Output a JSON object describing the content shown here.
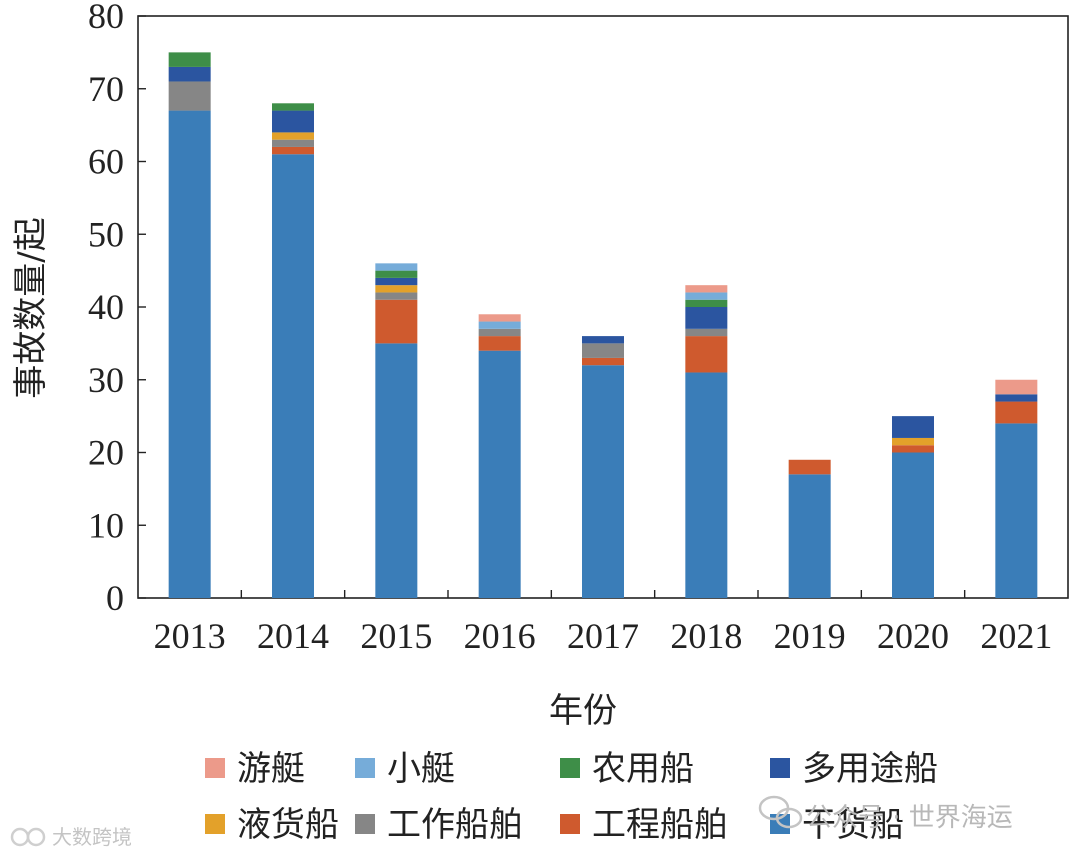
{
  "chart_data": {
    "type": "bar",
    "stacked": true,
    "categories": [
      "2013",
      "2014",
      "2015",
      "2016",
      "2017",
      "2018",
      "2019",
      "2020",
      "2021"
    ],
    "series": [
      {
        "name": "干货船",
        "color": "#3a7db8",
        "values": [
          67,
          61,
          35,
          34,
          32,
          31,
          17,
          20,
          24
        ]
      },
      {
        "name": "工程船舶",
        "color": "#cf5a2e",
        "values": [
          0,
          1,
          6,
          2,
          1,
          5,
          2,
          1,
          3
        ]
      },
      {
        "name": "工作船舶",
        "color": "#868686",
        "values": [
          4,
          1,
          1,
          1,
          2,
          1,
          0,
          0,
          0
        ]
      },
      {
        "name": "液货船",
        "color": "#e3a12a",
        "values": [
          0,
          1,
          1,
          0,
          0,
          0,
          0,
          1,
          0
        ]
      },
      {
        "name": "多用途船",
        "color": "#2b55a0",
        "values": [
          2,
          3,
          1,
          0,
          1,
          3,
          0,
          3,
          1
        ]
      },
      {
        "name": "农用船",
        "color": "#3e8e48",
        "values": [
          2,
          1,
          1,
          0,
          0,
          1,
          0,
          0,
          0
        ]
      },
      {
        "name": "小艇",
        "color": "#76acd9",
        "values": [
          0,
          0,
          1,
          1,
          0,
          1,
          0,
          0,
          0
        ]
      },
      {
        "name": "游艇",
        "color": "#ec9a8a",
        "values": [
          0,
          0,
          0,
          1,
          0,
          1,
          0,
          0,
          2
        ]
      }
    ],
    "legend_order": [
      "游艇",
      "小艇",
      "农用船",
      "多用途船",
      "液货船",
      "工作船舶",
      "工程船舶",
      "干货船"
    ],
    "xlabel": "年份",
    "ylabel": "事故数量/起",
    "ylim": [
      0,
      80
    ],
    "yticks": [
      0,
      10,
      20,
      30,
      40,
      50,
      60,
      70,
      80
    ],
    "grid": false,
    "legend_position": "bottom"
  },
  "watermarks": {
    "wechat": "公众号 · 世界海运",
    "corner": "大数跨境"
  }
}
